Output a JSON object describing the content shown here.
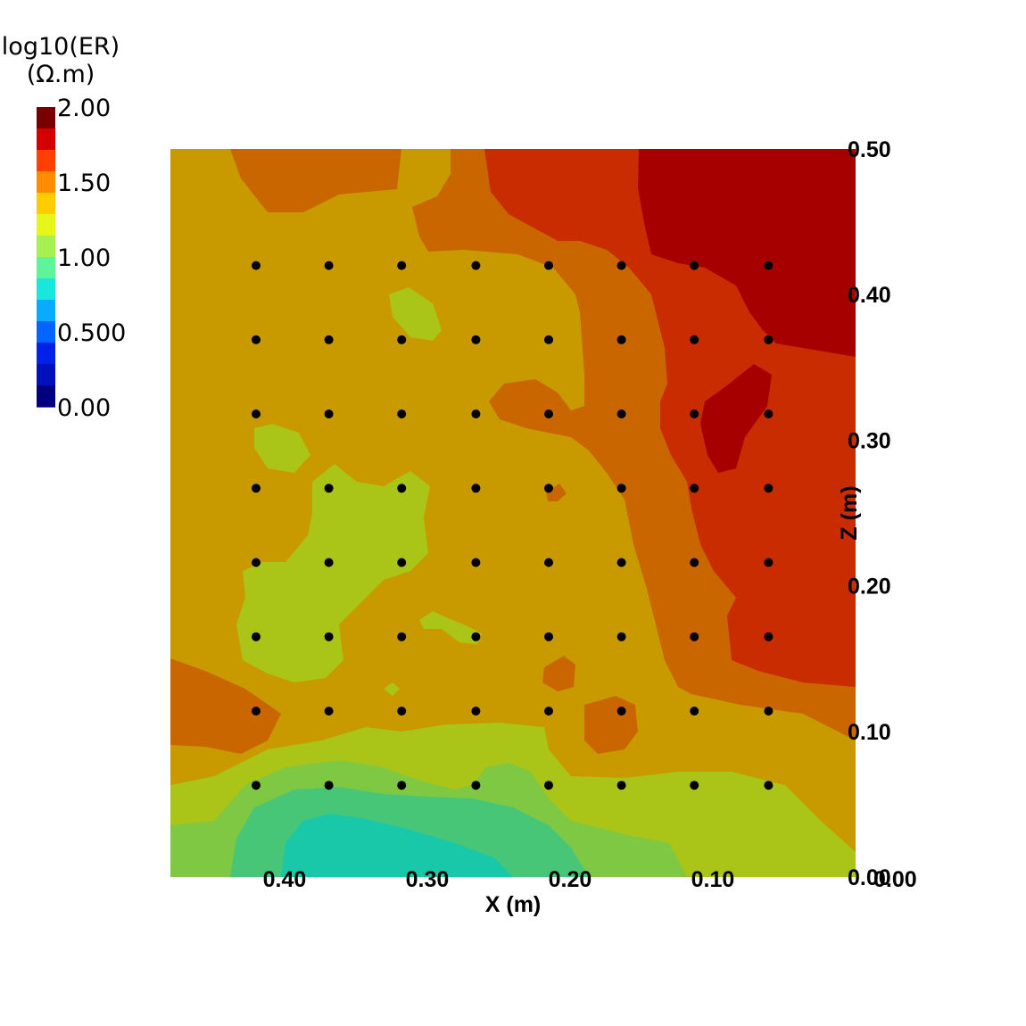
{
  "chart_data": {
    "type": "heatmap",
    "title": "",
    "colorbar": {
      "title_line1": "log10(ER)",
      "title_line2": "(Ω.m)",
      "range": [
        0.0,
        2.0
      ],
      "tick_labels": [
        "2.00",
        "1.50",
        "1.00",
        "0.500",
        "0.00"
      ],
      "tick_values": [
        2.0,
        1.5,
        1.0,
        0.5,
        0.0
      ],
      "colors": [
        "#7a0000",
        "#d40000",
        "#ff4000",
        "#ff8c00",
        "#ffcc00",
        "#e6f51a",
        "#a6f050",
        "#5cf59a",
        "#1ae6d9",
        "#0aaaff",
        "#0066ff",
        "#0022e6",
        "#0010bb",
        "#000080"
      ]
    },
    "xlabel": "X (m)",
    "ylabel": "Z (m)",
    "xlim": [
      0.48,
      0.0
    ],
    "ylim": [
      0.0,
      0.5
    ],
    "x_tick_labels": [
      "0.40",
      "0.30",
      "0.20",
      "0.10",
      "0.00"
    ],
    "x_tick_values": [
      0.4,
      0.3,
      0.2,
      0.1,
      0.0
    ],
    "y_tick_labels": [
      "0.00",
      "0.10",
      "0.20",
      "0.30",
      "0.40",
      "0.50"
    ],
    "y_tick_values": [
      0.0,
      0.1,
      0.2,
      0.3,
      0.4,
      0.5
    ],
    "electrodes": {
      "x": [
        0.42,
        0.369,
        0.318,
        0.266,
        0.215,
        0.164,
        0.113,
        0.061
      ],
      "z": [
        0.42,
        0.369,
        0.318,
        0.267,
        0.216,
        0.165,
        0.114,
        0.063
      ]
    },
    "field_colors": {
      "v2.0": "#a60000",
      "v1.75": "#c92c00",
      "v1.5": "#c96600",
      "v1.25": "#c99a00",
      "v1.1": "#aac417",
      "v1.0": "#7ec844",
      "v0.85": "#47c678",
      "v0.75": "#18c8a8"
    }
  }
}
